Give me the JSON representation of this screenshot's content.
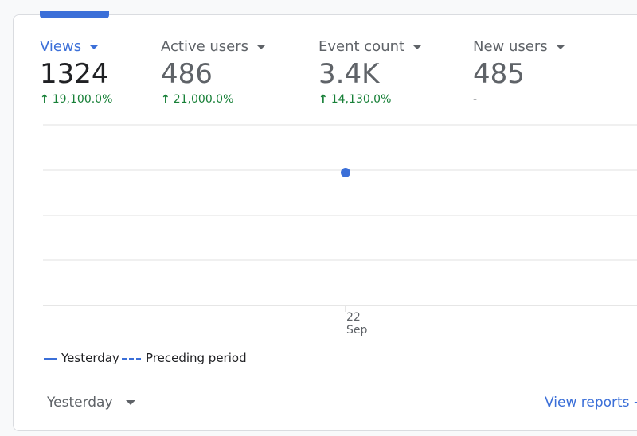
{
  "metrics": [
    {
      "label": "Views",
      "value": "1324",
      "change": "19,100.0%"
    },
    {
      "label": "Active users",
      "value": "486",
      "change": "21,000.0%"
    },
    {
      "label": "Event count",
      "value": "3.4K",
      "change": "14,130.0%"
    },
    {
      "label": "New users",
      "value": "485",
      "change": "-"
    }
  ],
  "chart_data": {
    "type": "line",
    "categories": [
      "22 Sep"
    ],
    "ylim": [
      0,
      1800
    ],
    "series": [
      {
        "name": "Yesterday",
        "color": "#3b6fd8",
        "values": [
          1324
        ]
      },
      {
        "name": "Preceding period",
        "color": "#3b6fd8",
        "values": [
          null
        ]
      }
    ]
  },
  "footer": {
    "period": "Yesterday",
    "link": "View reports"
  }
}
